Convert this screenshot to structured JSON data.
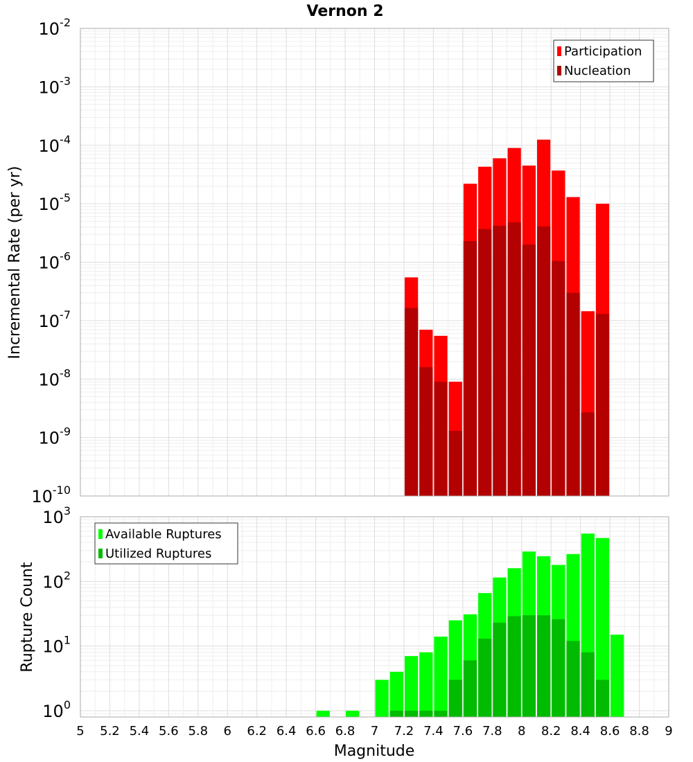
{
  "chart_data": [
    {
      "type": "bar",
      "title": "Vernon 2",
      "xlabel": "Magnitude",
      "ylabel": "Incremental Rate (per yr)",
      "yscale": "log",
      "ylim": [
        1e-10,
        0.01
      ],
      "xlim": [
        5,
        9
      ],
      "bar_width": 0.1,
      "grid": true,
      "legend": "top-right",
      "series": [
        {
          "name": "Participation",
          "color": "#ff0000",
          "x": [
            7.25,
            7.35,
            7.45,
            7.55,
            7.65,
            7.75,
            7.85,
            7.95,
            8.05,
            8.15,
            8.25,
            8.35,
            8.45,
            8.55
          ],
          "values": [
            5.5e-07,
            7e-08,
            5.5e-08,
            9e-09,
            2.2e-05,
            4.3e-05,
            6e-05,
            9e-05,
            4.5e-05,
            0.000125,
            3.7e-05,
            1.3e-05,
            1.45e-07,
            1e-05
          ]
        },
        {
          "name": "Nucleation",
          "color": "#b30000",
          "x": [
            7.25,
            7.35,
            7.45,
            7.55,
            7.65,
            7.75,
            7.85,
            7.95,
            8.05,
            8.15,
            8.25,
            8.35,
            8.45,
            8.55
          ],
          "values": [
            1.65e-07,
            1.6e-08,
            9e-09,
            1.3e-09,
            2.3e-06,
            3.7e-06,
            4.2e-06,
            4.8e-06,
            2e-06,
            4.1e-06,
            1.05e-06,
            3e-07,
            2.7e-09,
            1.3e-07
          ]
        }
      ]
    },
    {
      "type": "bar",
      "xlabel": "Magnitude",
      "ylabel": "Rupture Count",
      "yscale": "log",
      "ylim": [
        0.8,
        1000
      ],
      "xlim": [
        5,
        9
      ],
      "bar_width": 0.1,
      "grid": true,
      "legend": "top-left",
      "xticks": [
        "5",
        "5.2",
        "5.4",
        "5.6",
        "5.8",
        "6",
        "6.2",
        "6.4",
        "6.6",
        "6.8",
        "7",
        "7.2",
        "7.4",
        "7.6",
        "7.8",
        "8",
        "8.2",
        "8.4",
        "8.6",
        "8.8",
        "9"
      ],
      "series": [
        {
          "name": "Available Ruptures",
          "color": "#00ff00",
          "x": [
            6.65,
            6.85,
            7.05,
            7.15,
            7.25,
            7.35,
            7.45,
            7.55,
            7.65,
            7.75,
            7.85,
            7.95,
            8.05,
            8.15,
            8.25,
            8.35,
            8.45,
            8.55,
            8.65
          ],
          "values": [
            1,
            1,
            3,
            4,
            7,
            8,
            14,
            25,
            31,
            66,
            115,
            160,
            290,
            245,
            180,
            265,
            550,
            470,
            15
          ]
        },
        {
          "name": "Utilized Ruptures",
          "color": "#00bb00",
          "x": [
            7.15,
            7.25,
            7.35,
            7.45,
            7.55,
            7.65,
            7.75,
            7.85,
            7.95,
            8.05,
            8.15,
            8.25,
            8.35,
            8.45,
            8.55
          ],
          "values": [
            1,
            1,
            1,
            1,
            3,
            6,
            13,
            23,
            29,
            30,
            30,
            26,
            12,
            8,
            3
          ]
        }
      ]
    }
  ]
}
